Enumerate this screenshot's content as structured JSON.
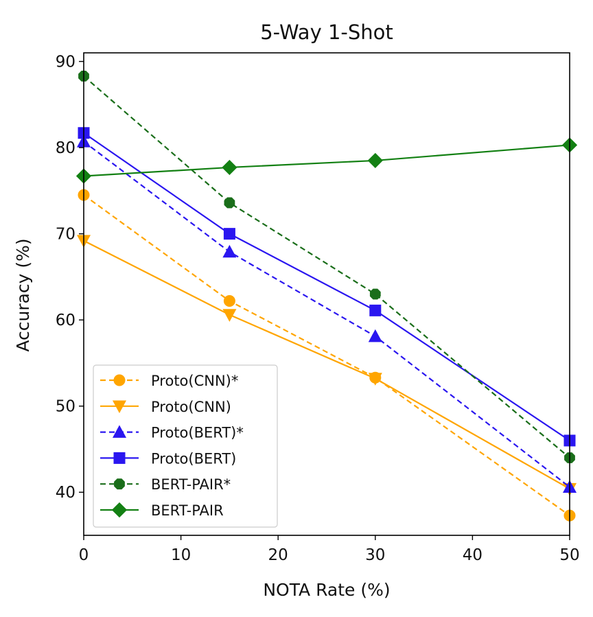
{
  "chart_data": {
    "type": "line",
    "title": "5-Way 1-Shot",
    "xlabel": "NOTA Rate (%)",
    "ylabel": "Accuracy (%)",
    "xlim": [
      0,
      50
    ],
    "ylim": [
      35,
      91
    ],
    "xticks": [
      0,
      10,
      20,
      30,
      40,
      50
    ],
    "yticks": [
      40,
      50,
      60,
      70,
      80,
      90
    ],
    "x": [
      0,
      15,
      30,
      50
    ],
    "grid": false,
    "legend_position": "lower-left",
    "series": [
      {
        "name": "Proto(CNN)*",
        "values": [
          74.5,
          62.2,
          53.3,
          37.3
        ],
        "color": "#FFA500",
        "dash": true,
        "marker": "circle"
      },
      {
        "name": "Proto(CNN)",
        "values": [
          69.2,
          60.6,
          53.2,
          40.4
        ],
        "color": "#FFA500",
        "dash": false,
        "marker": "triangle-down"
      },
      {
        "name": "Proto(BERT)*",
        "values": [
          80.7,
          67.9,
          58.1,
          40.6
        ],
        "color": "#2a16f0",
        "dash": true,
        "marker": "triangle-up"
      },
      {
        "name": "Proto(BERT)",
        "values": [
          81.7,
          70.0,
          61.1,
          46.0
        ],
        "color": "#2a16f0",
        "dash": false,
        "marker": "square"
      },
      {
        "name": "BERT-PAIR*",
        "values": [
          88.3,
          73.6,
          63.0,
          44.0
        ],
        "color": "#1a6e1a",
        "dash": true,
        "marker": "octagon"
      },
      {
        "name": "BERT-PAIR",
        "values": [
          76.7,
          77.7,
          78.5,
          80.3
        ],
        "color": "#138013",
        "dash": false,
        "marker": "diamond"
      }
    ]
  }
}
